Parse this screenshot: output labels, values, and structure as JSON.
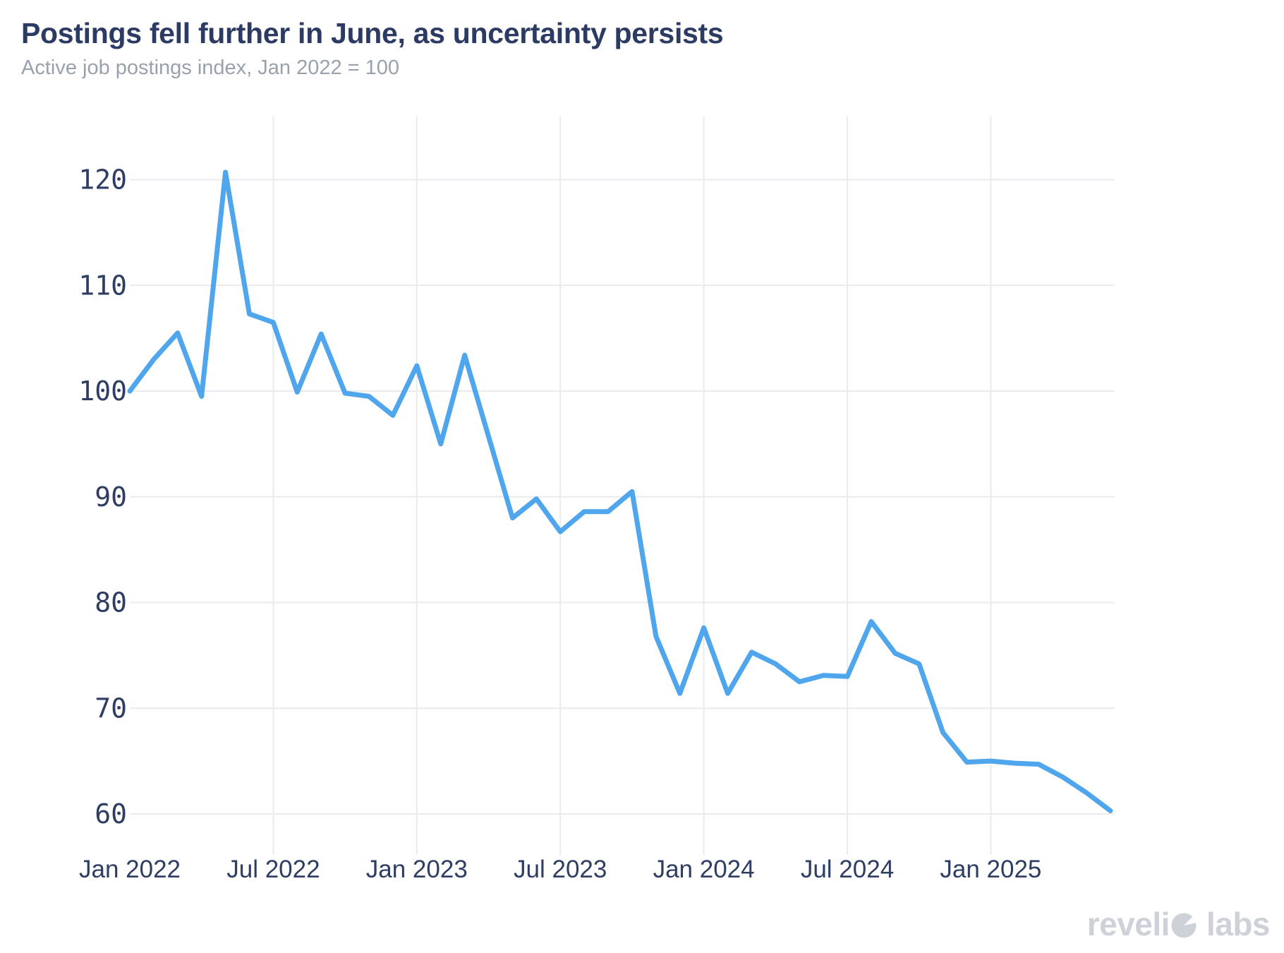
{
  "header": {
    "title": "Postings fell further in June, as uncertainty persists",
    "subtitle": "Active job postings index, Jan 2022 = 100"
  },
  "chart_data": {
    "type": "line",
    "title": "Postings fell further in June, as uncertainty persists",
    "subtitle": "Active job postings index, Jan 2022 = 100",
    "xlabel": "",
    "ylabel": "",
    "series_name": "Active job postings index (Jan 2022 = 100)",
    "x": [
      "Jan 2022",
      "Feb 2022",
      "Mar 2022",
      "Apr 2022",
      "May 2022",
      "Jun 2022",
      "Jul 2022",
      "Aug 2022",
      "Sep 2022",
      "Oct 2022",
      "Nov 2022",
      "Dec 2022",
      "Jan 2023",
      "Feb 2023",
      "Mar 2023",
      "Apr 2023",
      "May 2023",
      "Jun 2023",
      "Jul 2023",
      "Aug 2023",
      "Sep 2023",
      "Oct 2023",
      "Nov 2023",
      "Dec 2023",
      "Jan 2024",
      "Feb 2024",
      "Mar 2024",
      "Apr 2024",
      "May 2024",
      "Jun 2024",
      "Jul 2024",
      "Aug 2024",
      "Sep 2024",
      "Oct 2024",
      "Nov 2024",
      "Dec 2024",
      "Jan 2025",
      "Feb 2025",
      "Mar 2025",
      "Apr 2025",
      "May 2025",
      "Jun 2025"
    ],
    "values": [
      100.0,
      103.0,
      105.5,
      99.5,
      120.7,
      107.3,
      106.5,
      99.9,
      105.4,
      99.8,
      99.5,
      97.7,
      102.4,
      95.0,
      103.4,
      95.7,
      88.0,
      89.8,
      86.7,
      88.6,
      88.6,
      90.5,
      76.8,
      71.4,
      77.6,
      71.4,
      75.3,
      74.2,
      72.5,
      73.1,
      73.0,
      78.2,
      75.2,
      74.2,
      67.7,
      64.9,
      65.0,
      64.8,
      64.7,
      63.5,
      62.0,
      60.3
    ],
    "ylim": [
      60,
      120
    ],
    "yticks": [
      60,
      70,
      80,
      90,
      100,
      110,
      120
    ],
    "xticks": [
      {
        "label": "Jan 2022",
        "month": 0,
        "grid": false
      },
      {
        "label": "Jul 2022",
        "month": 6,
        "grid": true
      },
      {
        "label": "Jan 2023",
        "month": 12,
        "grid": true
      },
      {
        "label": "Jul 2023",
        "month": 18,
        "grid": true
      },
      {
        "label": "Jan 2024",
        "month": 24,
        "grid": true
      },
      {
        "label": "Jul 2024",
        "month": 30,
        "grid": true
      },
      {
        "label": "Jan 2025",
        "month": 36,
        "grid": true
      }
    ],
    "grid": true,
    "legend": "none",
    "line_color": "#4fa6ed",
    "grid_color": "#e9ebee",
    "title_color": "#2c3b63",
    "subtitle_color": "#99a2ac",
    "tick_color": "#2e3d63",
    "background_color": "#ffffff"
  },
  "footer": {
    "brand": "revelio labs",
    "brand_prefix": "reveli",
    "brand_suffix": "labs",
    "logo_color": "#ced2d8"
  }
}
